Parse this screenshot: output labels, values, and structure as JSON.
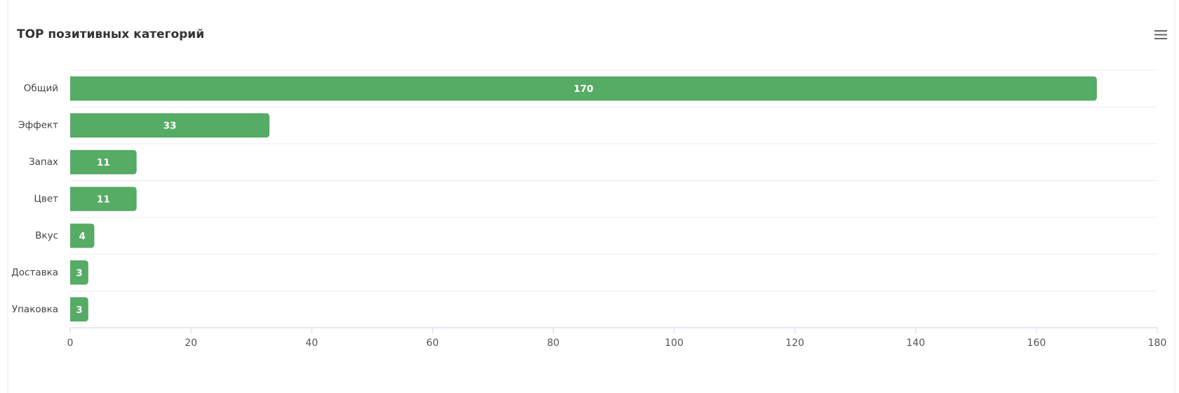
{
  "chart_data": {
    "type": "bar",
    "orientation": "horizontal",
    "title": "TOP позитивных категорий",
    "categories": [
      "Общий",
      "Эффект",
      "Запах",
      "Цвет",
      "Вкус",
      "Доставка",
      "Упаковка"
    ],
    "values": [
      170,
      33,
      11,
      11,
      4,
      3,
      3
    ],
    "color": "#56ab65",
    "xlim": [
      0,
      180
    ],
    "xticks": [
      0,
      20,
      40,
      60,
      80,
      100,
      120,
      140,
      160,
      180
    ],
    "data_labels": true
  }
}
